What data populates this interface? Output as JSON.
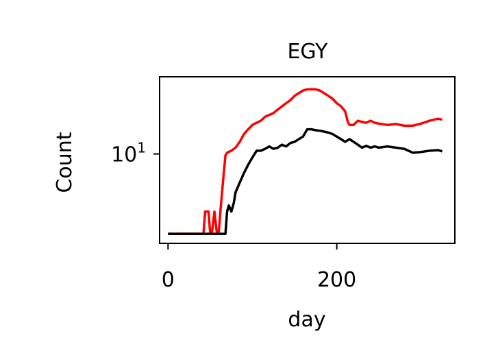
{
  "chart_data": {
    "type": "line",
    "title": "EGY",
    "xlabel": "day",
    "ylabel": "Count",
    "yscale": "log",
    "xlim": [
      -10,
      340
    ],
    "ylim": [
      2.6,
      32
    ],
    "grid": false,
    "legend": "none",
    "xticks": [
      {
        "value": 0,
        "label": "0"
      },
      {
        "value": 200,
        "label": "200"
      }
    ],
    "yticks": [
      {
        "value": 10,
        "label": "10",
        "sup": "1"
      }
    ],
    "series": [
      {
        "color": "#ff0000",
        "x": [
          0,
          10,
          20,
          30,
          40,
          42,
          44,
          48,
          50,
          52,
          55,
          58,
          60,
          62,
          65,
          68,
          70,
          75,
          80,
          85,
          90,
          95,
          100,
          105,
          110,
          115,
          120,
          125,
          130,
          135,
          140,
          145,
          150,
          155,
          160,
          165,
          170,
          175,
          180,
          185,
          190,
          195,
          200,
          205,
          210,
          213,
          215,
          220,
          225,
          230,
          235,
          240,
          245,
          250,
          260,
          270,
          280,
          290,
          300,
          310,
          320,
          325
        ],
        "y": [
          3,
          3,
          3,
          3,
          3,
          3,
          4.2,
          4.2,
          3,
          3,
          4.2,
          3,
          3,
          4.2,
          6.5,
          9.8,
          10.2,
          10.5,
          11,
          12,
          13.5,
          14.5,
          15.5,
          16,
          16.5,
          17.5,
          18,
          18.5,
          19.5,
          20.5,
          21.5,
          22.5,
          24,
          25,
          26,
          26.5,
          26.5,
          26.5,
          26,
          25,
          24,
          23,
          21.5,
          20.5,
          19,
          16.3,
          15.5,
          15.5,
          16.5,
          16.2,
          16,
          16.5,
          16,
          15.8,
          15.5,
          15.7,
          15.3,
          15.3,
          15.8,
          16.5,
          17,
          16.8
        ]
      },
      {
        "color": "#000000",
        "x": [
          0,
          10,
          20,
          30,
          40,
          50,
          60,
          65,
          68,
          70,
          72,
          75,
          78,
          80,
          85,
          90,
          95,
          100,
          105,
          110,
          115,
          120,
          125,
          130,
          135,
          140,
          145,
          150,
          155,
          160,
          165,
          170,
          175,
          180,
          185,
          190,
          195,
          200,
          205,
          210,
          215,
          220,
          225,
          230,
          235,
          240,
          245,
          250,
          260,
          270,
          280,
          290,
          300,
          310,
          320,
          325
        ],
        "y": [
          3,
          3,
          3,
          3,
          3,
          3,
          3,
          3,
          3,
          4.2,
          4.6,
          4.2,
          4.8,
          5.6,
          6.5,
          7.5,
          8.5,
          9.5,
          10.5,
          10.5,
          10.8,
          11.2,
          10.8,
          11,
          11.5,
          11.2,
          11.8,
          12,
          12.5,
          13,
          14.5,
          14.5,
          14.3,
          14.2,
          14,
          13.8,
          13.5,
          13,
          12.5,
          12,
          12.5,
          12,
          11.5,
          11,
          11.3,
          11,
          11.2,
          11,
          11.2,
          11,
          10.8,
          10.2,
          10.3,
          10.5,
          10.6,
          10.4
        ]
      }
    ]
  }
}
